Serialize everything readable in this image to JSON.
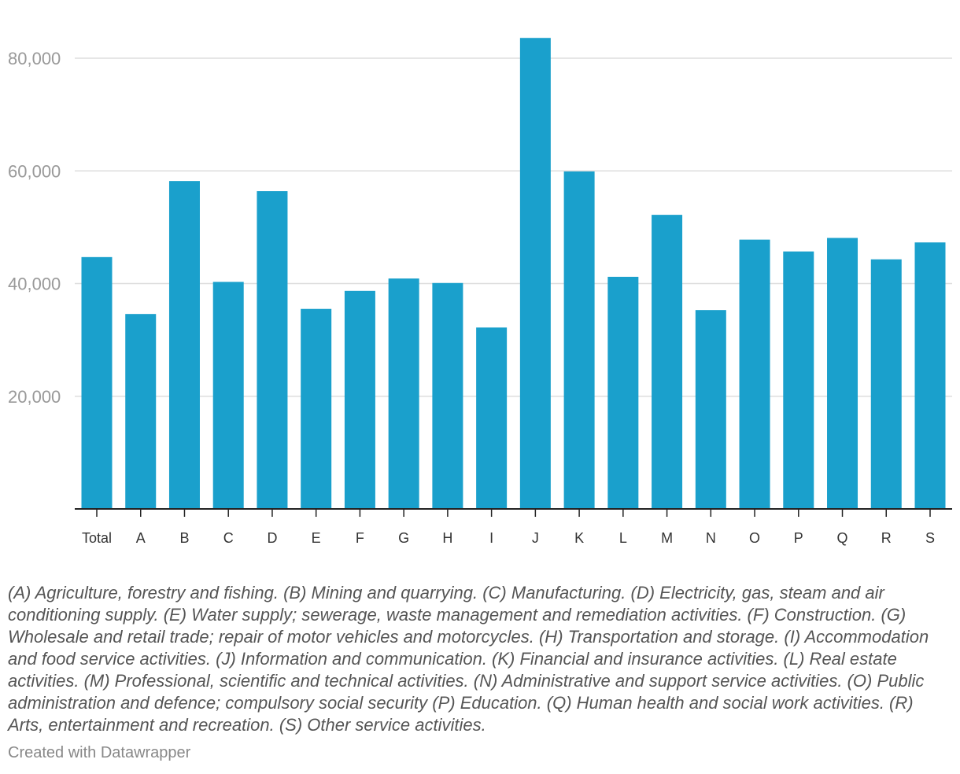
{
  "chart_data": {
    "type": "bar",
    "categories": [
      "Total",
      "A",
      "B",
      "C",
      "D",
      "E",
      "F",
      "G",
      "H",
      "I",
      "J",
      "K",
      "L",
      "M",
      "N",
      "O",
      "P",
      "Q",
      "R",
      "S"
    ],
    "values": [
      44700,
      34600,
      58200,
      40300,
      56400,
      35500,
      38700,
      40900,
      40100,
      32200,
      83600,
      59900,
      41200,
      52200,
      35300,
      47800,
      45700,
      48100,
      44300,
      47300
    ],
    "ylim": [
      0,
      85000
    ],
    "yticks": [
      20000,
      40000,
      60000,
      80000
    ],
    "ytick_labels": [
      "20,000",
      "40,000",
      "60,000",
      "80,000"
    ],
    "grid": true,
    "bar_color": "#1aa0cc",
    "title": "",
    "xlabel": "",
    "ylabel": ""
  },
  "footnote": "(A) Agriculture, forestry and fishing. (B) Mining and quarrying. (C) Manufacturing. (D) Electricity, gas, steam and air conditioning supply. (E) Water supply; sewerage, waste management and remediation activities. (F) Construction. (G) Wholesale and retail trade; repair of motor vehicles and motorcycles. (H) Transportation and storage. (I) Accommodation and food service activities. (J) Information and communication. (K) Financial and insurance activities. (L) Real estate activities. (M) Professional, scientific and technical activities. (N) Administrative and support service activities. (O) Public administration and defence; compulsory social security (P) Education. (Q) Human health and social work activities. (R) Arts, entertainment and recreation. (S) Other service activities.",
  "credit": "Created with Datawrapper"
}
